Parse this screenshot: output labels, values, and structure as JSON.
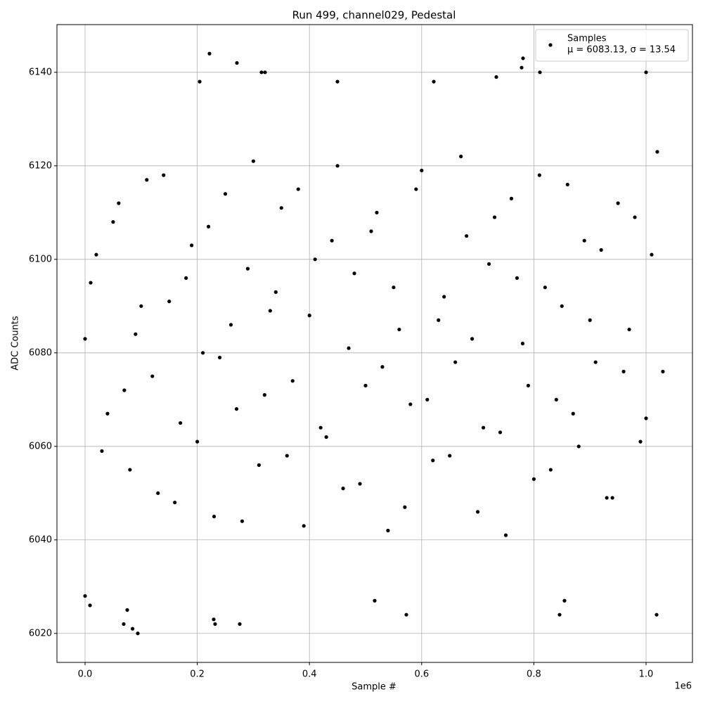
{
  "chart_data": {
    "type": "scatter",
    "title": "Run 499, channel029, Pedestal",
    "x_label": "Sample #",
    "y_label": "ADC Counts",
    "x_offset_label": "1e6",
    "xlim": [
      -50125,
      1082707
    ],
    "ylim": [
      6013.8,
      6150.2
    ],
    "xticks": [
      {
        "value": 0,
        "label": "0.0"
      },
      {
        "value": 200000,
        "label": "0.2"
      },
      {
        "value": 400000,
        "label": "0.4"
      },
      {
        "value": 600000,
        "label": "0.6"
      },
      {
        "value": 800000,
        "label": "0.8"
      },
      {
        "value": 1000000,
        "label": "1.0"
      }
    ],
    "yticks": [
      6020,
      6040,
      6060,
      6080,
      6100,
      6120,
      6140
    ],
    "grid": true,
    "legend_position": "upper right",
    "legend_note": "μ = 6083.13, σ = 13.54",
    "series": [
      {
        "name": "Samples",
        "color": "#000000",
        "x": [
          0,
          20000,
          40000,
          60000,
          80000,
          100000,
          120000,
          140000,
          160000,
          180000,
          200000,
          220000,
          240000,
          260000,
          280000,
          300000,
          320000,
          340000,
          360000,
          380000,
          400000,
          420000,
          440000,
          460000,
          480000,
          500000,
          520000,
          540000,
          560000,
          580000,
          600000,
          620000,
          640000,
          660000,
          680000,
          700000,
          720000,
          740000,
          760000,
          780000,
          800000,
          820000,
          840000,
          860000,
          880000,
          900000,
          920000,
          940000,
          960000,
          980000,
          1000000,
          1020000,
          10000,
          30000,
          50000,
          70000,
          90000,
          110000,
          130000,
          150000,
          170000,
          190000,
          210000,
          230000,
          250000,
          270000,
          290000,
          310000,
          330000,
          350000,
          370000,
          390000,
          410000,
          430000,
          450000,
          470000,
          490000,
          510000,
          530000,
          550000,
          570000,
          590000,
          610000,
          630000,
          650000,
          670000,
          690000,
          710000,
          730000,
          750000,
          770000,
          790000,
          810000,
          830000,
          850000,
          870000,
          890000,
          910000,
          930000,
          950000,
          970000,
          990000,
          1010000,
          1030000,
          221800,
          270700,
          780700,
          778200,
          810800,
          314500,
          320800,
          1000000,
          94000,
          84700,
          75200,
          68900,
          229300,
          231800,
          275700,
          572700,
          845900,
          1018800,
          0,
          8800,
          516300,
          854600,
          733100,
          449900,
          204300,
          621600
        ],
        "values": [
          6083,
          6101,
          6067,
          6112,
          6055,
          6090,
          6075,
          6118,
          6048,
          6096,
          6061,
          6107,
          6079,
          6086,
          6044,
          6121,
          6071,
          6093,
          6058,
          6115,
          6088,
          6064,
          6104,
          6051,
          6097,
          6073,
          6110,
          6042,
          6085,
          6069,
          6119,
          6057,
          6092,
          6078,
          6105,
          6046,
          6099,
          6063,
          6113,
          6082,
          6053,
          6094,
          6070,
          6116,
          6060,
          6087,
          6102,
          6049,
          6076,
          6109,
          6066,
          6123,
          6095,
          6059,
          6108,
          6072,
          6084,
          6117,
          6050,
          6091,
          6065,
          6103,
          6080,
          6045,
          6114,
          6068,
          6098,
          6056,
          6089,
          6111,
          6074,
          6043,
          6100,
          6062,
          6120,
          6081,
          6052,
          6106,
          6077,
          6094,
          6047,
          6115,
          6070,
          6087,
          6058,
          6122,
          6083,
          6064,
          6109,
          6041,
          6096,
          6073,
          6118,
          6055,
          6090,
          6067,
          6104,
          6078,
          6049,
          6112,
          6085,
          6061,
          6101,
          6076,
          6144,
          6142,
          6143,
          6141,
          6140,
          6140,
          6140,
          6140,
          6020,
          6021,
          6025,
          6022,
          6023,
          6022,
          6022,
          6024,
          6024,
          6024,
          6028,
          6026,
          6027,
          6027,
          6139,
          6138,
          6138,
          6138
        ]
      }
    ]
  }
}
